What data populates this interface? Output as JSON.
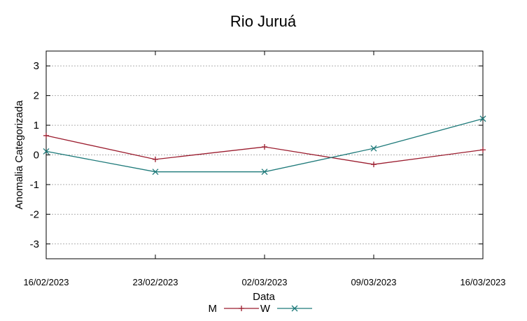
{
  "chart_data": {
    "type": "line",
    "title": "Rio Juruá",
    "xlabel": "Data",
    "ylabel": "Anomalia Categorizada",
    "categories": [
      "16/02/2023",
      "23/02/2023",
      "02/03/2023",
      "09/03/2023",
      "16/03/2023"
    ],
    "yticks": [
      "3",
      "2",
      "1",
      "0",
      "-1",
      "-2",
      "-3"
    ],
    "ylim": [
      -3.5,
      3.5
    ],
    "grid": true,
    "legend_position": "bottom",
    "series": [
      {
        "name": "M",
        "values": [
          0.65,
          -0.15,
          0.27,
          -0.32,
          0.17
        ],
        "color": "#9b1c2e",
        "marker": "plus"
      },
      {
        "name": "W",
        "values": [
          0.12,
          -0.57,
          -0.57,
          0.22,
          1.22
        ],
        "color": "#1e7a7a",
        "marker": "cross"
      }
    ]
  }
}
